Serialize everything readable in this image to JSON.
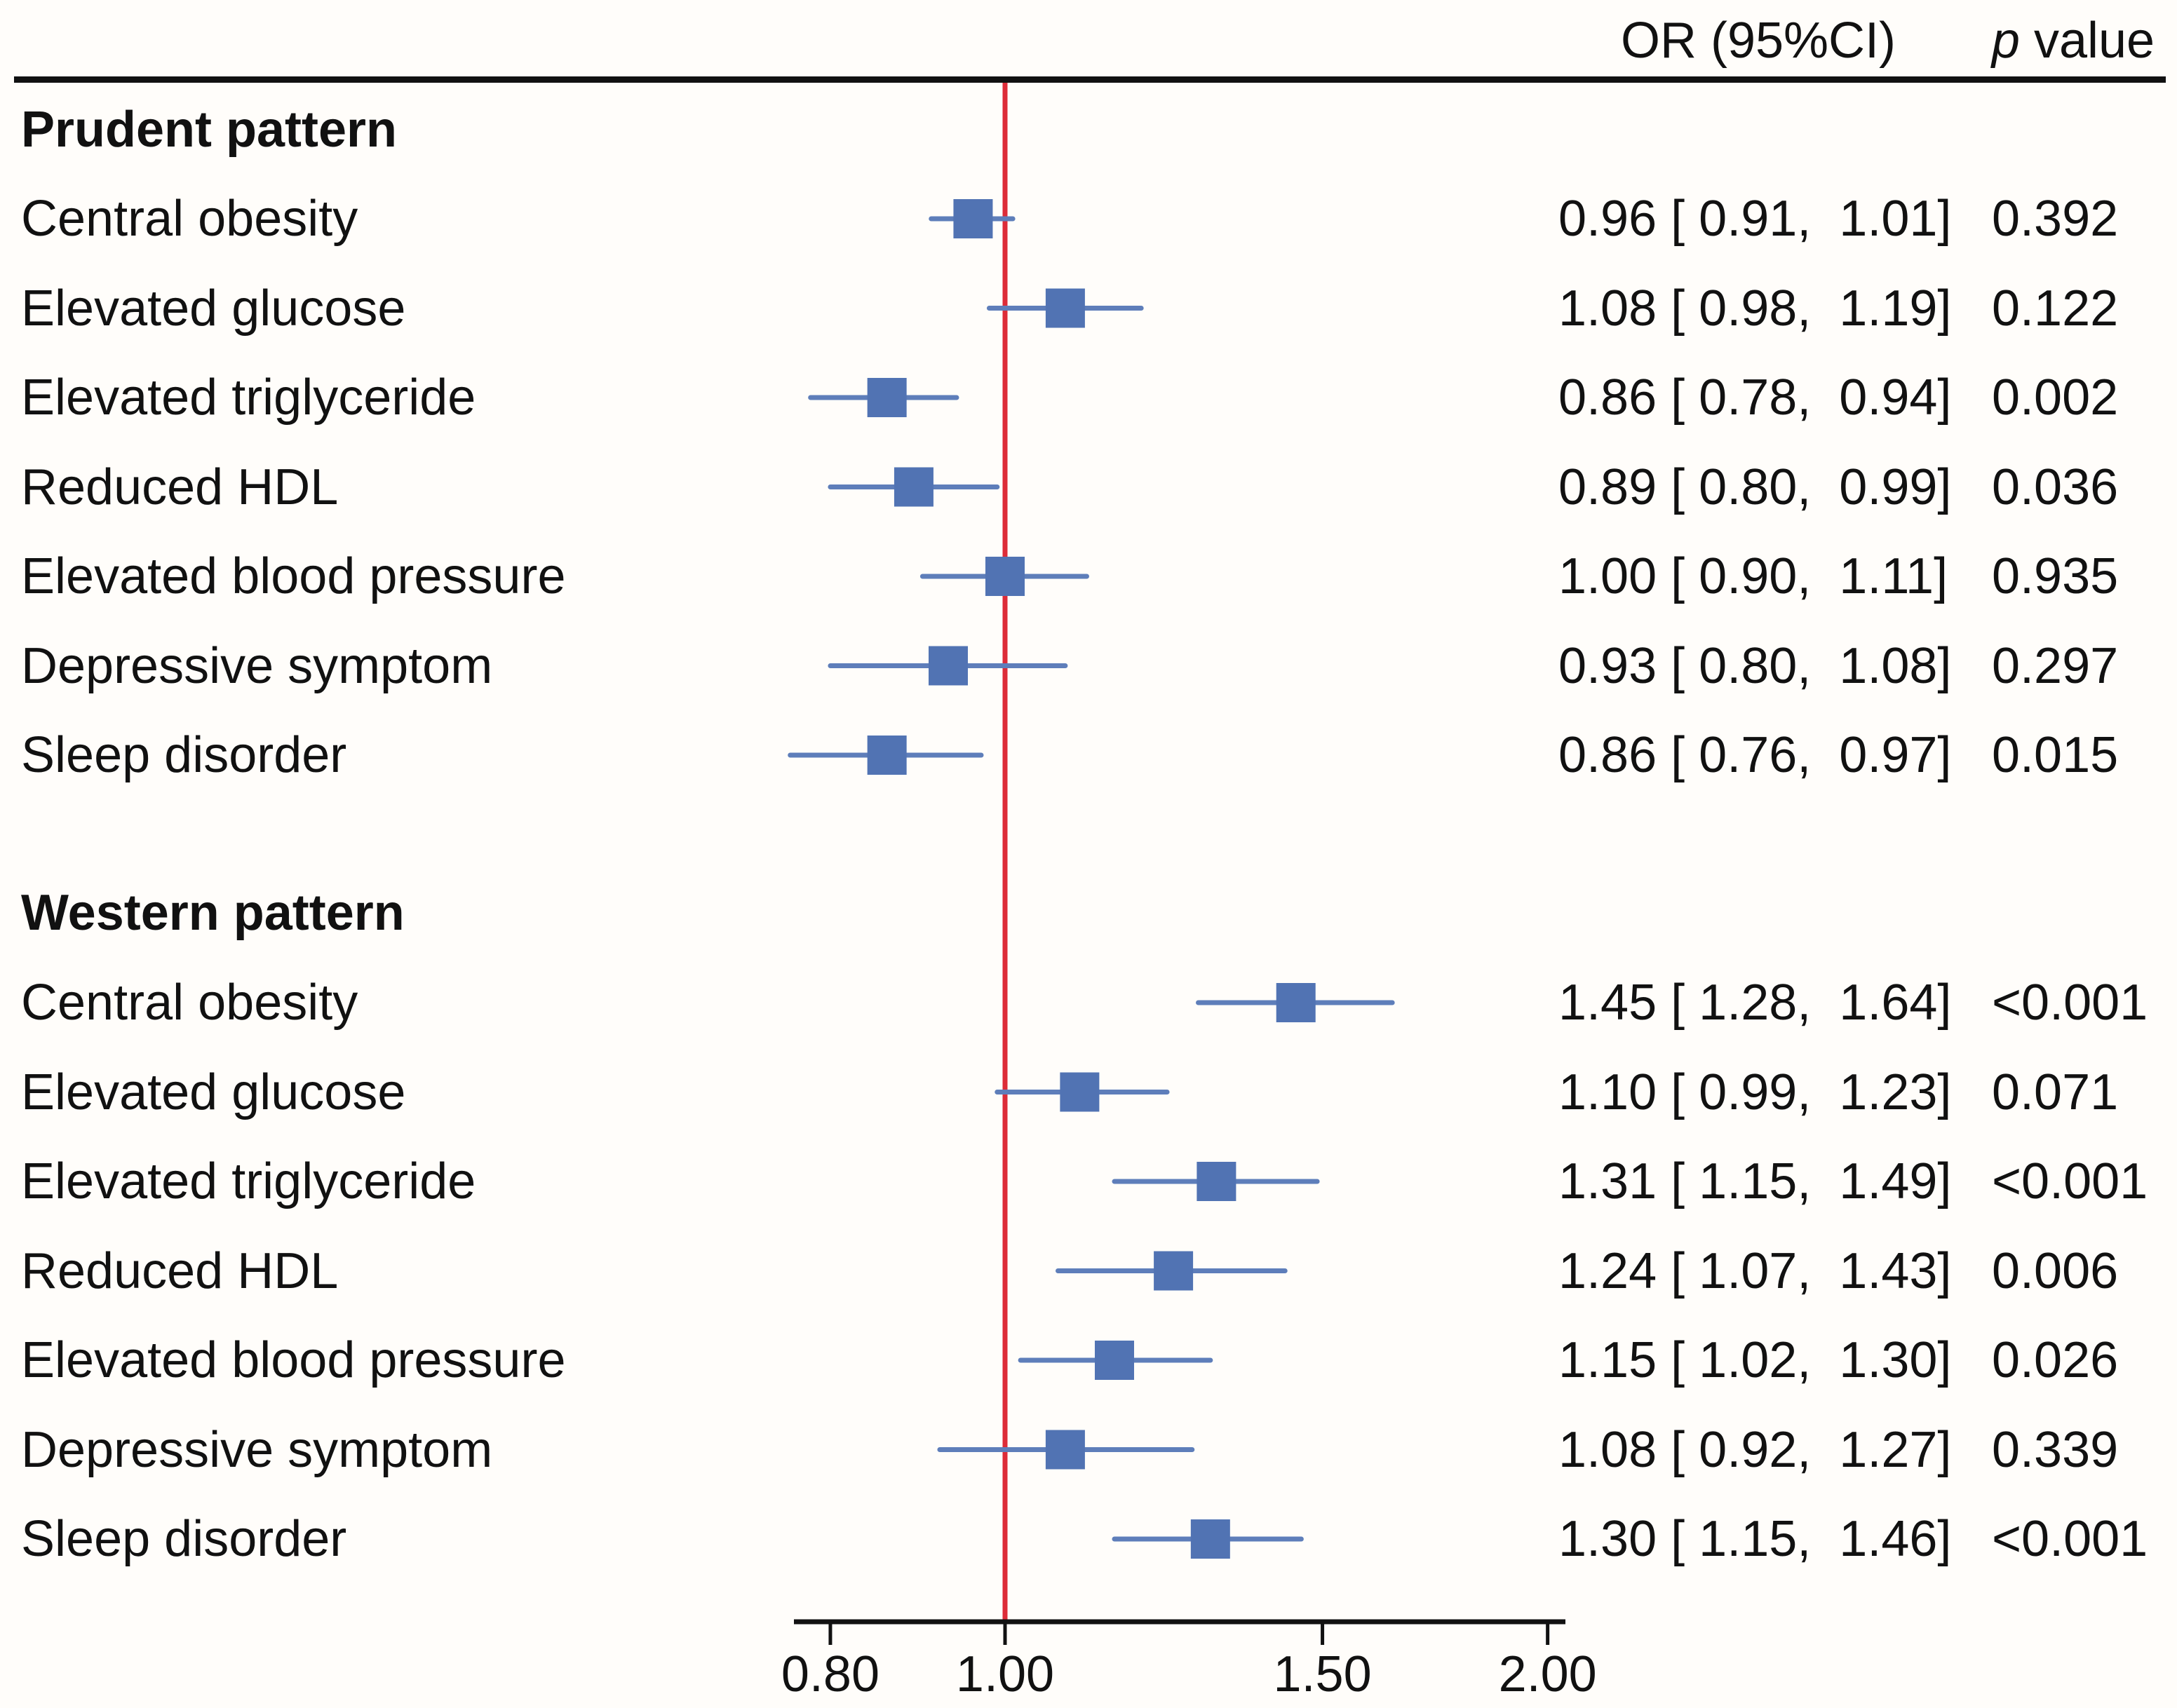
{
  "header": {
    "or_label": "OR (95%CI)",
    "p_label_italic": "p",
    "p_label_rest": " value"
  },
  "chart_data": {
    "type": "forest",
    "x_scale": "log10",
    "x_ticks": [
      0.8,
      1.0,
      1.5,
      2.0
    ],
    "x_tick_labels": [
      "0.80",
      "1.00",
      "1.50",
      "2.00"
    ],
    "reference_line": 1.0,
    "xlim": [
      0.76,
      2.05
    ],
    "columns": [
      "OR (95%CI)",
      "p value"
    ],
    "groups": [
      {
        "label": "Prudent pattern",
        "rows": [
          {
            "label": "Central obesity",
            "or": 0.96,
            "ci_low": 0.91,
            "ci_high": 1.01,
            "or_text": "0.96 [ 0.91,  1.01]",
            "p_text": "0.392"
          },
          {
            "label": "Elevated glucose",
            "or": 1.08,
            "ci_low": 0.98,
            "ci_high": 1.19,
            "or_text": "1.08 [ 0.98,  1.19]",
            "p_text": "0.122"
          },
          {
            "label": "Elevated triglyceride",
            "or": 0.86,
            "ci_low": 0.78,
            "ci_high": 0.94,
            "or_text": "0.86 [ 0.78,  0.94]",
            "p_text": "0.002"
          },
          {
            "label": "Reduced HDL",
            "or": 0.89,
            "ci_low": 0.8,
            "ci_high": 0.99,
            "or_text": "0.89 [ 0.80,  0.99]",
            "p_text": "0.036"
          },
          {
            "label": "Elevated blood pressure",
            "or": 1.0,
            "ci_low": 0.9,
            "ci_high": 1.11,
            "or_text": "1.00 [ 0.90,  1.11]",
            "p_text": "0.935"
          },
          {
            "label": "Depressive symptom",
            "or": 0.93,
            "ci_low": 0.8,
            "ci_high": 1.08,
            "or_text": "0.93 [ 0.80,  1.08]",
            "p_text": "0.297"
          },
          {
            "label": "Sleep disorder",
            "or": 0.86,
            "ci_low": 0.76,
            "ci_high": 0.97,
            "or_text": "0.86 [ 0.76,  0.97]",
            "p_text": "0.015"
          }
        ]
      },
      {
        "label": "Western pattern",
        "rows": [
          {
            "label": "Central obesity",
            "or": 1.45,
            "ci_low": 1.28,
            "ci_high": 1.64,
            "or_text": "1.45 [ 1.28,  1.64]",
            "p_text": "<0.001"
          },
          {
            "label": "Elevated glucose",
            "or": 1.1,
            "ci_low": 0.99,
            "ci_high": 1.23,
            "or_text": "1.10 [ 0.99,  1.23]",
            "p_text": "0.071"
          },
          {
            "label": "Elevated triglyceride",
            "or": 1.31,
            "ci_low": 1.15,
            "ci_high": 1.49,
            "or_text": "1.31 [ 1.15,  1.49]",
            "p_text": "<0.001"
          },
          {
            "label": "Reduced HDL",
            "or": 1.24,
            "ci_low": 1.07,
            "ci_high": 1.43,
            "or_text": "1.24 [ 1.07,  1.43]",
            "p_text": "0.006"
          },
          {
            "label": "Elevated blood pressure",
            "or": 1.15,
            "ci_low": 1.02,
            "ci_high": 1.3,
            "or_text": "1.15 [ 1.02,  1.30]",
            "p_text": "0.026"
          },
          {
            "label": "Depressive symptom",
            "or": 1.08,
            "ci_low": 0.92,
            "ci_high": 1.27,
            "or_text": "1.08 [ 0.92,  1.27]",
            "p_text": "0.339"
          },
          {
            "label": "Sleep disorder",
            "or": 1.3,
            "ci_low": 1.15,
            "ci_high": 1.46,
            "or_text": "1.30 [ 1.15,  1.46]",
            "p_text": "<0.001"
          }
        ]
      }
    ],
    "colors": {
      "marker": "#5173b3",
      "ci_line": "#5e7eba",
      "reference_line": "#dd2c38",
      "axis": "#111111"
    }
  }
}
